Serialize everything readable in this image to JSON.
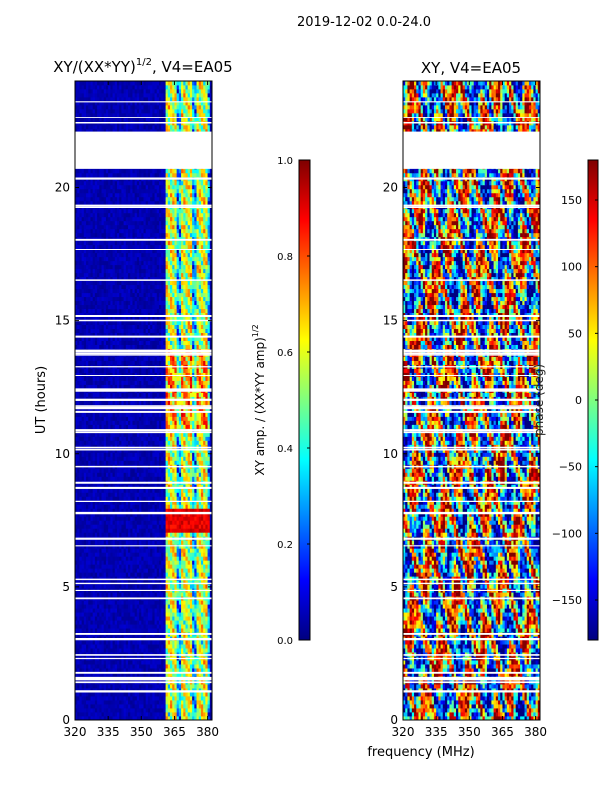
{
  "suptitle": "2019-12-02 0.0-24.0",
  "chart_data": [
    {
      "type": "heatmap",
      "title": "XY/(XX*YY)^{1/2}, V4=EA05",
      "title_main": "XY/(XX*YY)",
      "title_sup": "1/2",
      "title_tail": ", V4=EA05",
      "xlabel": "",
      "ylabel": "UT (hours)",
      "xlim": [
        320,
        382
      ],
      "ylim": [
        0,
        24
      ],
      "xticks": [
        "320",
        "335",
        "350",
        "365",
        "380"
      ],
      "xtick_values": [
        320,
        335,
        350,
        365,
        380
      ],
      "yticks": [
        "0",
        "5",
        "10",
        "15",
        "20"
      ],
      "ytick_values": [
        0,
        5,
        10,
        15,
        20
      ],
      "blank_bands": [
        [
          20.7,
          22.1
        ]
      ],
      "colorbar": {
        "label": "XY amp. / (XX*YY amp)^{1/2}",
        "label_main": "XY amp. / (XX*YY amp)",
        "label_sup": "1/2",
        "range": [
          0.0,
          1.0
        ],
        "ticks": [
          "0.0",
          "0.2",
          "0.4",
          "0.6",
          "0.8",
          "1.0"
        ],
        "tick_values": [
          0.0,
          0.2,
          0.4,
          0.6,
          0.8,
          1.0
        ],
        "colormap": "jet"
      }
    },
    {
      "type": "heatmap",
      "title": "XY, V4=EA05",
      "xlabel": "frequency (MHz)",
      "ylabel": "",
      "xlim": [
        320,
        382
      ],
      "ylim": [
        0,
        24
      ],
      "xticks": [
        "320",
        "335",
        "350",
        "365",
        "380"
      ],
      "xtick_values": [
        320,
        335,
        350,
        365,
        380
      ],
      "yticks": [
        "0",
        "5",
        "10",
        "15",
        "20"
      ],
      "ytick_values": [
        0,
        5,
        10,
        15,
        20
      ],
      "blank_bands": [
        [
          20.7,
          22.1
        ]
      ],
      "colorbar": {
        "label": "phase (deg)",
        "range": [
          -180,
          180
        ],
        "ticks": [
          "−150",
          "−100",
          "−50",
          "0",
          "50",
          "100",
          "150"
        ],
        "tick_values": [
          -150,
          -100,
          -50,
          0,
          50,
          100,
          150
        ],
        "colormap": "jet"
      }
    }
  ],
  "colors": {
    "jet_stops": [
      "#00007f",
      "#0000ff",
      "#007fff",
      "#00ffff",
      "#7fff7f",
      "#ffff00",
      "#ff7f00",
      "#ff0000",
      "#7f0000"
    ]
  }
}
